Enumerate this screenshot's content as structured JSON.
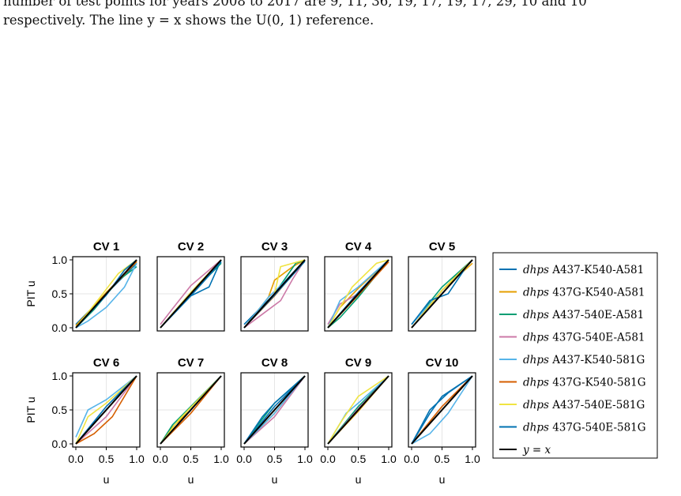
{
  "caption": {
    "line1": "number of test points for years 2008 to 2017 are 9, 11, 36, 19, 17, 19, 17, 29, 10 and 10",
    "line2": "respectively. The line y = x shows the U(0, 1) reference."
  },
  "chart_data": {
    "type": "line",
    "panels": [
      "CV 1",
      "CV 2",
      "CV 3",
      "CV 4",
      "CV 5",
      "CV 6",
      "CV 7",
      "CV 8",
      "CV 9",
      "CV 10"
    ],
    "xlabel": "u",
    "ylabel": "PIT u",
    "xlim": [
      0,
      1
    ],
    "ylim": [
      0,
      1
    ],
    "xticks": [
      "0.0",
      "0.5",
      "1.0"
    ],
    "yticks": [
      "0.0",
      "0.5",
      "1.0"
    ],
    "grid": true,
    "legend_position": "right",
    "series": [
      {
        "name": "dhps A437-K540-A581",
        "prefix": "dhps",
        "suffix": "A437-K540-A581",
        "color": "#0072b2"
      },
      {
        "name": "dhps 437G-K540-A581",
        "prefix": "dhps",
        "suffix": "437G-K540-A581",
        "color": "#e69f00"
      },
      {
        "name": "dhps A437-540E-A581",
        "prefix": "dhps",
        "suffix": "A437-540E-A581",
        "color": "#009e73"
      },
      {
        "name": "dhps 437G-540E-A581",
        "prefix": "dhps",
        "suffix": "437G-540E-A581",
        "color": "#cc79a7"
      },
      {
        "name": "dhps A437-K540-581G",
        "prefix": "dhps",
        "suffix": "A437-K540-581G",
        "color": "#56b4e9"
      },
      {
        "name": "dhps 437G-K540-581G",
        "prefix": "dhps",
        "suffix": "437G-K540-581G",
        "color": "#d55e00"
      },
      {
        "name": "dhps A437-540E-581G",
        "prefix": "dhps",
        "suffix": "A437-540E-581G",
        "color": "#f0e442"
      },
      {
        "name": "dhps 437G-540E-581G",
        "prefix": "dhps",
        "suffix": "437G-540E-581G",
        "color": "#0072b2"
      }
    ],
    "reference": {
      "name": "y = x",
      "color": "#000000"
    },
    "pit_curves": [
      [
        [
          [
            0,
            0.05
          ],
          [
            0.5,
            0.5
          ],
          [
            1,
            0.95
          ]
        ],
        [
          [
            0,
            0.03
          ],
          [
            0.5,
            0.52
          ],
          [
            1,
            0.97
          ]
        ],
        [
          [
            0,
            0
          ],
          [
            0.3,
            0.27
          ],
          [
            0.7,
            0.7
          ],
          [
            1,
            0.9
          ]
        ],
        [
          [
            0,
            0
          ],
          [
            0.5,
            0.5
          ],
          [
            1,
            1
          ]
        ],
        [
          [
            0,
            0
          ],
          [
            0.2,
            0.1
          ],
          [
            0.5,
            0.3
          ],
          [
            0.8,
            0.6
          ],
          [
            1,
            0.95
          ]
        ],
        [
          [
            0,
            0
          ],
          [
            0.5,
            0.5
          ],
          [
            1,
            0.98
          ]
        ],
        [
          [
            0,
            0
          ],
          [
            0.4,
            0.45
          ],
          [
            0.7,
            0.8
          ],
          [
            1,
            1
          ]
        ],
        [
          [
            0,
            0
          ],
          [
            0.5,
            0.48
          ],
          [
            0.8,
            0.85
          ],
          [
            1,
            1
          ]
        ]
      ],
      [
        [
          [
            0,
            0
          ],
          [
            0.5,
            0.47
          ],
          [
            0.8,
            0.6
          ],
          [
            1,
            1
          ]
        ],
        [
          [
            0,
            0
          ],
          [
            0.5,
            0.52
          ],
          [
            1,
            1
          ]
        ],
        [
          [
            0,
            0
          ],
          [
            0.5,
            0.5
          ],
          [
            1,
            0.95
          ]
        ],
        [
          [
            0,
            0.05
          ],
          [
            0.2,
            0.28
          ],
          [
            0.5,
            0.62
          ],
          [
            1,
            1
          ]
        ],
        [
          [
            0,
            0
          ],
          [
            0.5,
            0.52
          ],
          [
            1,
            0.97
          ]
        ],
        [
          [
            0,
            0
          ],
          [
            0.5,
            0.48
          ],
          [
            1,
            1
          ]
        ],
        [
          [
            0,
            0
          ],
          [
            0.5,
            0.52
          ],
          [
            1,
            1
          ]
        ],
        [
          [
            0,
            0
          ],
          [
            0.5,
            0.47
          ],
          [
            1,
            0.97
          ]
        ]
      ],
      [
        [
          [
            0,
            0.05
          ],
          [
            0.5,
            0.5
          ],
          [
            1,
            1
          ]
        ],
        [
          [
            0,
            0
          ],
          [
            0.4,
            0.45
          ],
          [
            0.5,
            0.7
          ],
          [
            0.8,
            0.9
          ],
          [
            1,
            1
          ]
        ],
        [
          [
            0,
            0
          ],
          [
            0.5,
            0.5
          ],
          [
            0.85,
            0.95
          ],
          [
            1,
            1
          ]
        ],
        [
          [
            0,
            0
          ],
          [
            0.3,
            0.2
          ],
          [
            0.6,
            0.4
          ],
          [
            0.8,
            0.72
          ],
          [
            1,
            1
          ]
        ],
        [
          [
            0,
            0
          ],
          [
            0.4,
            0.45
          ],
          [
            0.6,
            0.62
          ],
          [
            1,
            1
          ]
        ],
        [
          [
            0,
            0
          ],
          [
            0.5,
            0.47
          ],
          [
            1,
            1
          ]
        ],
        [
          [
            0,
            0
          ],
          [
            0.5,
            0.5
          ],
          [
            0.6,
            0.9
          ],
          [
            1,
            1
          ]
        ],
        [
          [
            0,
            0
          ],
          [
            0.5,
            0.48
          ],
          [
            1,
            0.98
          ]
        ]
      ],
      [
        [
          [
            0,
            0
          ],
          [
            0.2,
            0.2
          ],
          [
            0.5,
            0.5
          ],
          [
            1,
            1
          ]
        ],
        [
          [
            0,
            0
          ],
          [
            0.2,
            0.3
          ],
          [
            0.5,
            0.58
          ],
          [
            1,
            1
          ]
        ],
        [
          [
            0,
            0
          ],
          [
            0.2,
            0.15
          ],
          [
            0.5,
            0.45
          ],
          [
            1,
            1
          ]
        ],
        [
          [
            0,
            0.05
          ],
          [
            0.2,
            0.35
          ],
          [
            0.5,
            0.5
          ],
          [
            1,
            1
          ]
        ],
        [
          [
            0,
            0
          ],
          [
            0.2,
            0.4
          ],
          [
            0.5,
            0.6
          ],
          [
            1,
            1
          ]
        ],
        [
          [
            0,
            0
          ],
          [
            0.5,
            0.48
          ],
          [
            1,
            0.97
          ]
        ],
        [
          [
            0,
            0
          ],
          [
            0.4,
            0.6
          ],
          [
            0.8,
            0.95
          ],
          [
            1,
            1
          ]
        ],
        [
          [
            0,
            0
          ],
          [
            0.5,
            0.52
          ],
          [
            1,
            1
          ]
        ]
      ],
      [
        [
          [
            0,
            0
          ],
          [
            0.3,
            0.3
          ],
          [
            0.7,
            0.7
          ],
          [
            1,
            1
          ]
        ],
        [
          [
            0,
            0
          ],
          [
            0.5,
            0.55
          ],
          [
            1,
            0.95
          ]
        ],
        [
          [
            0,
            0.05
          ],
          [
            0.5,
            0.6
          ],
          [
            1,
            1
          ]
        ],
        [
          [
            0,
            0
          ],
          [
            0.5,
            0.5
          ],
          [
            1,
            1
          ]
        ],
        [
          [
            0,
            0.05
          ],
          [
            0.5,
            0.55
          ],
          [
            1,
            1
          ]
        ],
        [
          [
            0,
            0
          ],
          [
            0.5,
            0.55
          ],
          [
            1,
            1
          ]
        ],
        [
          [
            0,
            0
          ],
          [
            0.5,
            0.55
          ],
          [
            1,
            1
          ]
        ],
        [
          [
            0,
            0.05
          ],
          [
            0.3,
            0.4
          ],
          [
            0.6,
            0.5
          ],
          [
            0.9,
            0.9
          ],
          [
            1,
            1
          ]
        ]
      ],
      [
        [
          [
            0,
            0
          ],
          [
            0.5,
            0.5
          ],
          [
            1,
            1
          ]
        ],
        [
          [
            0,
            0
          ],
          [
            0.5,
            0.5
          ],
          [
            1,
            1
          ]
        ],
        [
          [
            0,
            0
          ],
          [
            0.5,
            0.5
          ],
          [
            1,
            1
          ]
        ],
        [
          [
            0,
            0
          ],
          [
            0.5,
            0.4
          ],
          [
            1,
            1
          ]
        ],
        [
          [
            0,
            0.1
          ],
          [
            0.2,
            0.5
          ],
          [
            0.5,
            0.65
          ],
          [
            1,
            1
          ]
        ],
        [
          [
            0,
            0
          ],
          [
            0.3,
            0.15
          ],
          [
            0.6,
            0.4
          ],
          [
            1,
            1
          ]
        ],
        [
          [
            0,
            0
          ],
          [
            0.2,
            0.4
          ],
          [
            0.5,
            0.6
          ],
          [
            1,
            1
          ]
        ],
        [
          [
            0,
            0
          ],
          [
            0.5,
            0.55
          ],
          [
            1,
            1
          ]
        ]
      ],
      [
        [
          [
            0,
            0
          ],
          [
            0.5,
            0.5
          ],
          [
            1,
            1
          ]
        ],
        [
          [
            0,
            0
          ],
          [
            0.2,
            0.25
          ],
          [
            0.5,
            0.5
          ],
          [
            1,
            1
          ]
        ],
        [
          [
            0,
            0
          ],
          [
            0.2,
            0.28
          ],
          [
            0.5,
            0.55
          ],
          [
            1,
            1
          ]
        ],
        [
          [
            0,
            0
          ],
          [
            0.5,
            0.5
          ],
          [
            1,
            1
          ]
        ],
        [
          [
            0,
            0
          ],
          [
            0.3,
            0.3
          ],
          [
            0.6,
            0.6
          ],
          [
            1,
            1
          ]
        ],
        [
          [
            0,
            0
          ],
          [
            0.5,
            0.45
          ],
          [
            1,
            1
          ]
        ],
        [
          [
            0,
            0
          ],
          [
            0.3,
            0.35
          ],
          [
            1,
            1
          ]
        ],
        [
          [
            0,
            0
          ],
          [
            0.5,
            0.5
          ],
          [
            1,
            1
          ]
        ]
      ],
      [
        [
          [
            0,
            0
          ],
          [
            0.5,
            0.55
          ],
          [
            1,
            1
          ]
        ],
        [
          [
            0,
            0
          ],
          [
            0.5,
            0.45
          ],
          [
            1,
            1
          ]
        ],
        [
          [
            0,
            0
          ],
          [
            0.2,
            0.25
          ],
          [
            0.5,
            0.6
          ],
          [
            1,
            1
          ]
        ],
        [
          [
            0,
            0
          ],
          [
            0.5,
            0.4
          ],
          [
            1,
            1
          ]
        ],
        [
          [
            0,
            0
          ],
          [
            0.5,
            0.45
          ],
          [
            1,
            1
          ]
        ],
        [
          [
            0,
            0
          ],
          [
            0.5,
            0.5
          ],
          [
            1,
            1
          ]
        ],
        [
          [
            0,
            0
          ],
          [
            0.5,
            0.5
          ],
          [
            1,
            1
          ]
        ],
        [
          [
            0,
            0
          ],
          [
            0.3,
            0.4
          ],
          [
            0.5,
            0.6
          ],
          [
            1,
            1
          ]
        ]
      ],
      [
        [
          [
            0,
            0
          ],
          [
            0.5,
            0.5
          ],
          [
            1,
            1
          ]
        ],
        [
          [
            0,
            0
          ],
          [
            0.5,
            0.48
          ],
          [
            1,
            1
          ]
        ],
        [
          [
            0,
            0
          ],
          [
            0.5,
            0.55
          ],
          [
            1,
            1
          ]
        ],
        [
          [
            0,
            0
          ],
          [
            0.5,
            0.52
          ],
          [
            1,
            1
          ]
        ],
        [
          [
            0,
            0
          ],
          [
            0.3,
            0.45
          ],
          [
            0.5,
            0.6
          ],
          [
            1,
            1
          ]
        ],
        [
          [
            0,
            0
          ],
          [
            0.5,
            0.5
          ],
          [
            1,
            1
          ]
        ],
        [
          [
            0,
            0
          ],
          [
            0.2,
            0.3
          ],
          [
            0.5,
            0.7
          ],
          [
            1,
            1
          ]
        ],
        [
          [
            0,
            0
          ],
          [
            0.5,
            0.5
          ],
          [
            1,
            1
          ]
        ]
      ],
      [
        [
          [
            0,
            0
          ],
          [
            0.3,
            0.45
          ],
          [
            0.5,
            0.7
          ],
          [
            1,
            1
          ]
        ],
        [
          [
            0,
            0
          ],
          [
            0.5,
            0.5
          ],
          [
            1,
            1
          ]
        ],
        [
          [
            0,
            0
          ],
          [
            0.5,
            0.5
          ],
          [
            1,
            1
          ]
        ],
        [
          [
            0,
            0
          ],
          [
            0.5,
            0.5
          ],
          [
            1,
            1
          ]
        ],
        [
          [
            0,
            0
          ],
          [
            0.3,
            0.15
          ],
          [
            0.6,
            0.45
          ],
          [
            1,
            1
          ]
        ],
        [
          [
            0,
            0
          ],
          [
            0.5,
            0.55
          ],
          [
            1,
            1
          ]
        ],
        [
          [
            0,
            0
          ],
          [
            0.5,
            0.5
          ],
          [
            1,
            1
          ]
        ],
        [
          [
            0,
            0
          ],
          [
            0.3,
            0.5
          ],
          [
            0.6,
            0.75
          ],
          [
            1,
            1
          ]
        ]
      ]
    ]
  }
}
